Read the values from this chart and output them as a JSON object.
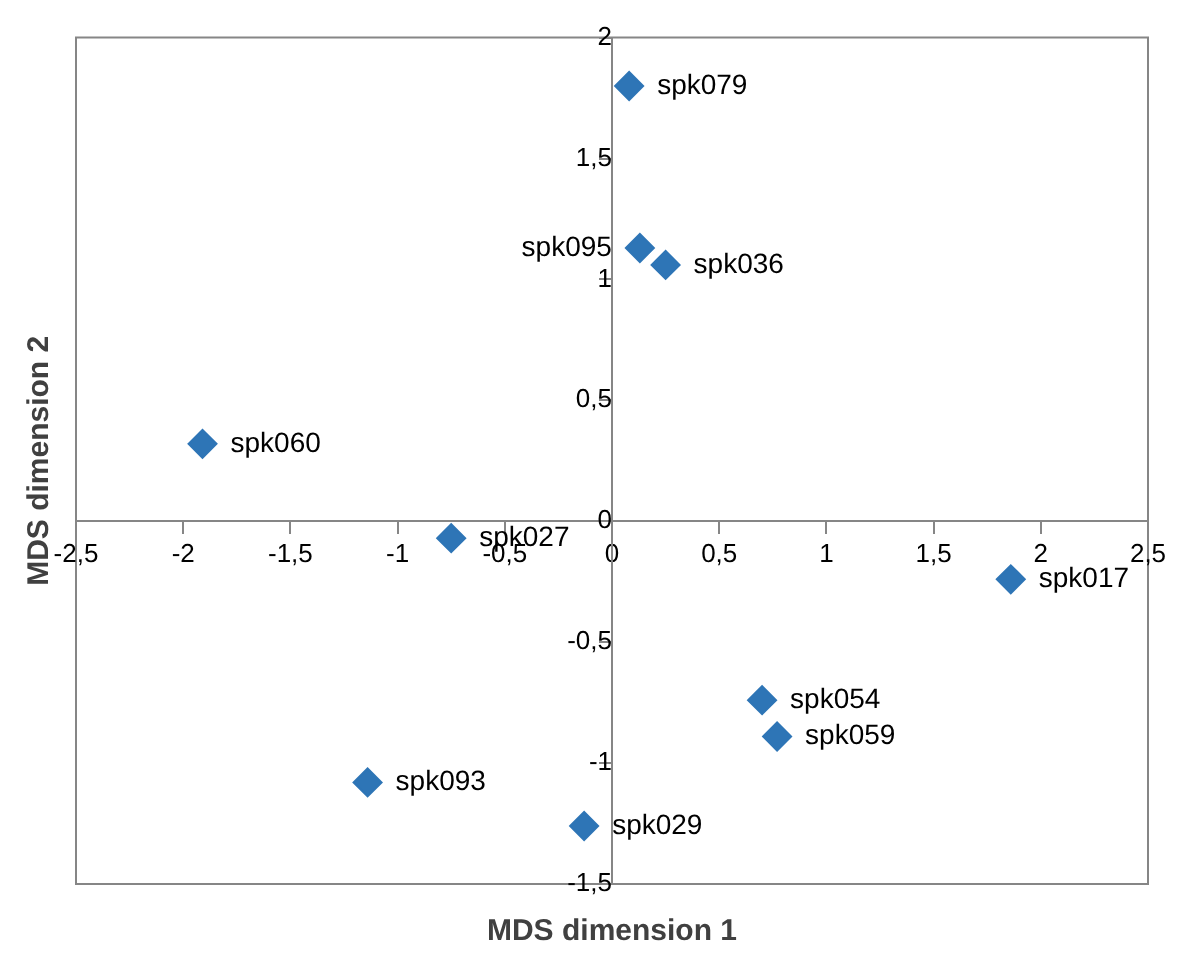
{
  "chart_data": {
    "type": "scatter",
    "xlabel": "MDS dimension 1",
    "ylabel": "MDS dimension 2",
    "x": [
      0.08,
      0.13,
      0.25,
      -1.91,
      -0.75,
      1.86,
      0.7,
      0.77,
      -1.14,
      -0.13
    ],
    "values": [
      1.8,
      1.13,
      1.06,
      0.32,
      -0.07,
      -0.24,
      -0.74,
      -0.89,
      -1.08,
      -1.26
    ],
    "color": "#2e75b6",
    "marker": "diamond",
    "grid": false,
    "legend": false,
    "xlim": [
      -2.5,
      2.5
    ],
    "ylim": [
      -1.5,
      2
    ],
    "xticks": [
      {
        "value": -2.5,
        "label": "-2,5"
      },
      -2,
      {
        "value": -1.5,
        "label": "-1,5"
      },
      -1,
      {
        "value": -0.5,
        "label": "-0,5"
      },
      0,
      {
        "value": 0.5,
        "label": "0,5"
      },
      1,
      {
        "value": 1.5,
        "label": "1,5"
      },
      2,
      {
        "value": 2.5,
        "label": "2,5"
      }
    ],
    "yticks": [
      {
        "value": -1.5,
        "label": "-1,5"
      },
      -1,
      {
        "value": -0.5,
        "label": "-0,5"
      },
      0,
      {
        "value": 0.5,
        "label": "0,5"
      },
      1,
      {
        "value": 1.5,
        "label": "1,5"
      },
      2
    ],
    "annotations": [
      {
        "text": "spk079",
        "x": 0.08,
        "y": 1.8
      },
      {
        "text": "spk095",
        "x": 0.13,
        "y": 1.13
      },
      {
        "text": "spk036",
        "x": 0.25,
        "y": 1.06
      },
      {
        "text": "spk060",
        "x": -1.91,
        "y": 0.32
      },
      {
        "text": "spk027",
        "x": -0.75,
        "y": -0.07
      },
      {
        "text": "spk017",
        "x": 1.86,
        "y": -0.24
      },
      {
        "text": "spk054",
        "x": 0.7,
        "y": -0.74
      },
      {
        "text": "spk059",
        "x": 0.77,
        "y": -0.89
      },
      {
        "text": "spk093",
        "x": -1.14,
        "y": -1.08
      },
      {
        "text": "spk029",
        "x": -0.13,
        "y": -1.26
      }
    ]
  }
}
